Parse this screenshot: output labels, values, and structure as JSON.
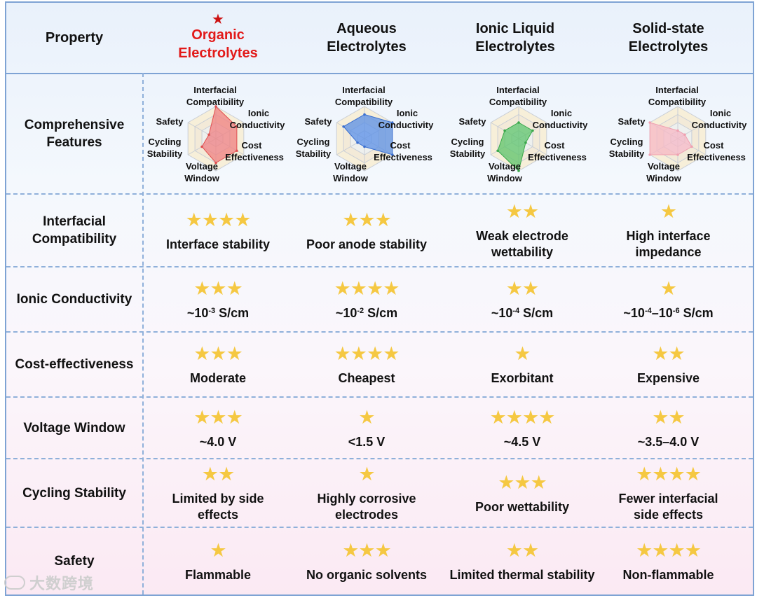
{
  "header": {
    "property": "Property",
    "columns": [
      {
        "line1": "Organic",
        "line2": "Electrolytes",
        "highlight": true,
        "marker": "★"
      },
      {
        "line1": "Aqueous",
        "line2": "Electrolytes",
        "highlight": false
      },
      {
        "line1": "Ionic Liquid",
        "line2": "Electrolytes",
        "highlight": false
      },
      {
        "line1": "Solid-state",
        "line2": "Electrolytes",
        "highlight": false
      }
    ]
  },
  "radar": {
    "row_label": [
      "Comprehensive",
      "Features"
    ],
    "axes": {
      "interfacial": [
        "Interfacial",
        "Compatibility"
      ],
      "ionic": [
        "Ionic",
        "Conductivity"
      ],
      "cost": [
        "Cost",
        "Effectiveness"
      ],
      "voltage": [
        "Voltage",
        "Window"
      ],
      "cycling": [
        "Cycling",
        "Stability"
      ],
      "safety": "Safety"
    },
    "scores_order": [
      "Interfacial Compatibility",
      "Ionic Conductivity",
      "Cost Effectiveness",
      "Voltage Window",
      "Cycling Stability",
      "Safety"
    ],
    "max_score": 4,
    "series": [
      {
        "name": "Organic Electrolytes",
        "scores": [
          4,
          3,
          3,
          3,
          2,
          1
        ],
        "fill": "#f08080",
        "stroke": "#e05050"
      },
      {
        "name": "Aqueous Electrolytes",
        "scores": [
          3,
          4,
          4,
          1,
          1,
          3
        ],
        "fill": "#5a8fe6",
        "stroke": "#3a6fd0"
      },
      {
        "name": "Ionic Liquid Electrolytes",
        "scores": [
          2,
          2,
          1,
          4,
          3,
          2
        ],
        "fill": "#5dc46a",
        "stroke": "#3aa84a"
      },
      {
        "name": "Solid-state Electrolytes",
        "scores": [
          1,
          1,
          2,
          2,
          4,
          4
        ],
        "fill": "#f7b8c4",
        "stroke": "#f0a0b0"
      }
    ]
  },
  "rows": [
    {
      "label": [
        "Interfacial",
        "Compatibility"
      ],
      "cells": [
        {
          "stars": "★★★★",
          "desc": [
            "Interface stability"
          ]
        },
        {
          "stars": "★★★",
          "desc": [
            "Poor anode stability"
          ]
        },
        {
          "stars": "★★",
          "desc": [
            "Weak electrode",
            "wettability"
          ]
        },
        {
          "stars": "★",
          "desc": [
            "High interface",
            "impedance"
          ]
        }
      ]
    },
    {
      "label": [
        "Ionic Conductivity"
      ],
      "cells": [
        {
          "stars": "★★★",
          "desc": [
            "~10",
            "-3",
            " S/cm"
          ]
        },
        {
          "stars": "★★★★",
          "desc": [
            "~10",
            "-2",
            " S/cm"
          ]
        },
        {
          "stars": "★★",
          "desc": [
            "~10",
            "-4",
            " S/cm"
          ]
        },
        {
          "stars": "★",
          "desc": [
            "~10",
            "-4",
            "–10",
            "-6",
            " S/cm"
          ]
        }
      ]
    },
    {
      "label": [
        "Cost-effectiveness"
      ],
      "cells": [
        {
          "stars": "★★★",
          "desc": [
            "Moderate"
          ]
        },
        {
          "stars": "★★★★",
          "desc": [
            "Cheapest"
          ]
        },
        {
          "stars": "★",
          "desc": [
            "Exorbitant"
          ]
        },
        {
          "stars": "★★",
          "desc": [
            "Expensive"
          ]
        }
      ]
    },
    {
      "label": [
        "Voltage Window"
      ],
      "cells": [
        {
          "stars": "★★★",
          "desc": [
            "~4.0 V"
          ]
        },
        {
          "stars": "★",
          "desc": [
            "<1.5 V"
          ]
        },
        {
          "stars": "★★★★",
          "desc": [
            "~4.5 V"
          ]
        },
        {
          "stars": "★★",
          "desc": [
            "~3.5–4.0 V"
          ]
        }
      ]
    },
    {
      "label": [
        "Cycling Stability"
      ],
      "cells": [
        {
          "stars": "★★",
          "desc": [
            "Limited by side",
            "effects"
          ]
        },
        {
          "stars": "★",
          "desc": [
            "Highly corrosive",
            "electrodes"
          ]
        },
        {
          "stars": "★★★",
          "desc": [
            "Poor wettability"
          ]
        },
        {
          "stars": "★★★★",
          "desc": [
            "Fewer interfacial",
            "side effects"
          ]
        }
      ]
    },
    {
      "label": [
        "Safety"
      ],
      "cells": [
        {
          "stars": "★",
          "desc": [
            "Flammable"
          ]
        },
        {
          "stars": "★★★",
          "desc": [
            "No organic solvents"
          ]
        },
        {
          "stars": "★★",
          "desc": [
            "Limited thermal stability"
          ]
        },
        {
          "stars": "★★★★",
          "desc": [
            "Non-flammable"
          ]
        }
      ]
    }
  ],
  "watermark": "大数跨境"
}
